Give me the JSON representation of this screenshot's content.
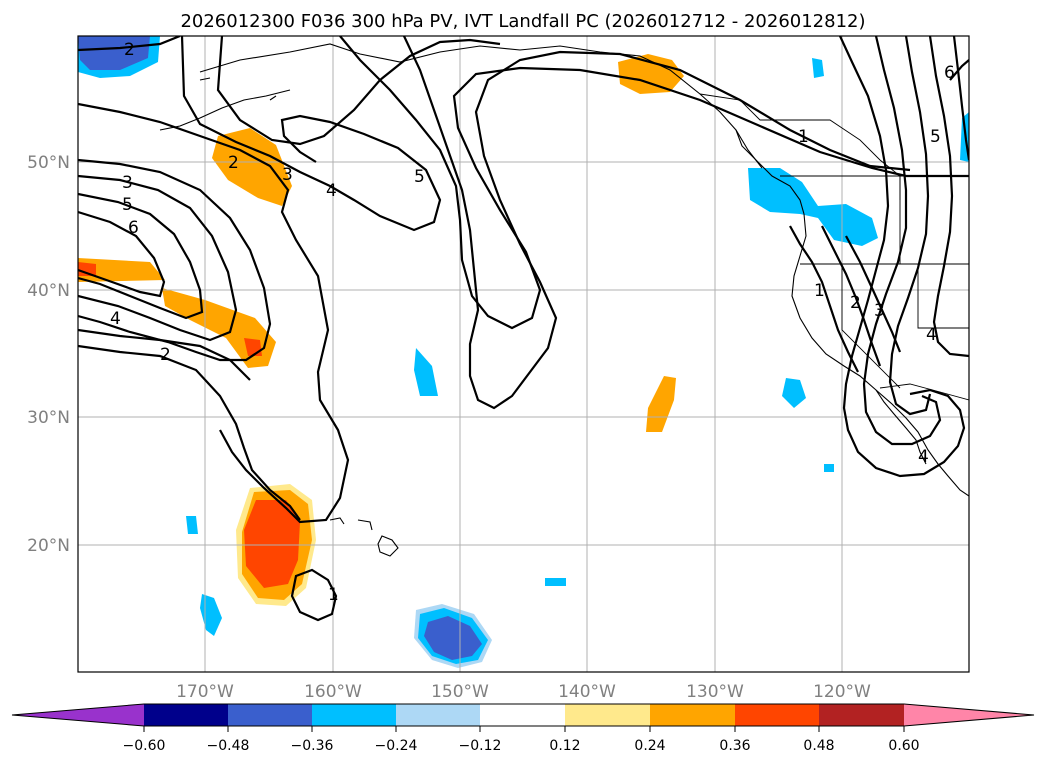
{
  "title": "2026012300 F036 300 hPa PV, IVT Landfall PC (2026012712 - 2026012812)",
  "map": {
    "lon_labels": [
      "170°W",
      "160°W",
      "150°W",
      "140°W",
      "130°W",
      "120°W"
    ],
    "lat_labels": [
      "50°N",
      "40°N",
      "30°N",
      "20°N"
    ]
  },
  "contour_labels": {
    "c1": "2",
    "c2": "2",
    "c3": "3",
    "c4": "4",
    "c5": "5",
    "c6": "3",
    "c7": "5",
    "c8": "6",
    "c9": "4",
    "c10": "2",
    "c11": "1",
    "c12": "1",
    "c13": "2",
    "c14": "3",
    "c15": "4",
    "c16": "5",
    "c17": "6",
    "c18": "1",
    "c19": "4"
  },
  "colorbar": {
    "levels": [
      "−0.60",
      "−0.48",
      "−0.36",
      "−0.24",
      "−0.12",
      "0.12",
      "0.24",
      "0.36",
      "0.48",
      "0.60"
    ],
    "colors": [
      "#9932cc",
      "#00008b",
      "#3a5fcd",
      "#00bfff",
      "#add8f5",
      "#ffffff",
      "#ffe98c",
      "#ffa500",
      "#ff4500",
      "#b22222",
      "#ff85a8"
    ]
  }
}
